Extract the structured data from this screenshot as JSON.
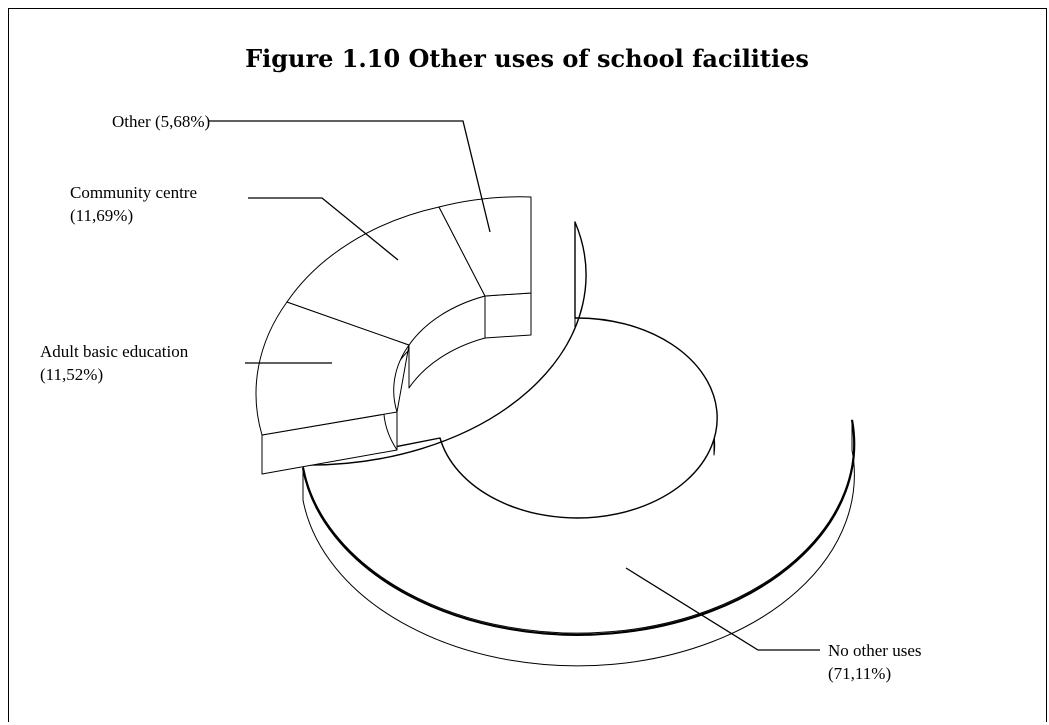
{
  "chart_data": {
    "type": "pie",
    "style": "3d exploded donut",
    "title": "Figure 1.10 Other uses of school facilities",
    "slices": [
      {
        "label": "No other uses",
        "value": 71.11,
        "pct_label": "(71,11%)"
      },
      {
        "label": "Adult basic education",
        "value": 11.52,
        "pct_label": "(11,52%)"
      },
      {
        "label": "Community centre",
        "value": 11.69,
        "pct_label": "(11,69%)"
      },
      {
        "label": "Other",
        "value": 5.68,
        "pct_label": "(5,68%)"
      }
    ],
    "label_texts": {
      "other": "Other (5,68%)",
      "community_line1": "Community centre",
      "community_line2": "(11,69%)",
      "adult_line1": "Adult basic education",
      "adult_line2": "(11,52%)",
      "none_line1": "No other uses",
      "none_line2": "(71,11%)"
    }
  }
}
